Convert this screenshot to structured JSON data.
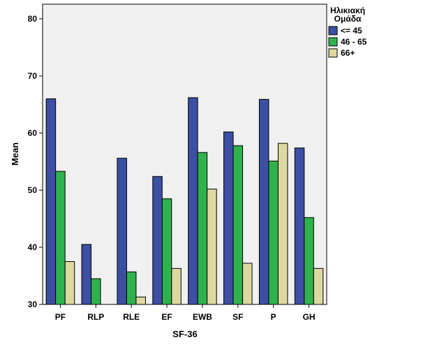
{
  "chart_data": {
    "type": "bar",
    "xlabel": "SF-36",
    "ylabel": "Mean",
    "ylim": [
      30,
      82
    ],
    "yticks": [
      30,
      40,
      50,
      60,
      70,
      80
    ],
    "grid": false,
    "legend_position": "right",
    "legend_title": [
      "Ηλικιακή",
      "Ομάδα"
    ],
    "categories": [
      "PF",
      "RLP",
      "RLE",
      "EF",
      "EWB",
      "SF",
      "P",
      "GH"
    ],
    "series": [
      {
        "name": "<= 45",
        "color": "#3c4fa3",
        "values": [
          66.0,
          40.5,
          55.6,
          52.4,
          66.2,
          60.2,
          65.9,
          57.4
        ]
      },
      {
        "name": "46 - 65",
        "color": "#2fb24c",
        "values": [
          53.3,
          34.5,
          35.7,
          48.5,
          56.6,
          57.8,
          55.1,
          45.2
        ]
      },
      {
        "name": "66+",
        "color": "#ddd8a0",
        "values": [
          37.5,
          30.0,
          31.3,
          36.3,
          50.2,
          37.2,
          58.2,
          36.3
        ]
      }
    ]
  }
}
